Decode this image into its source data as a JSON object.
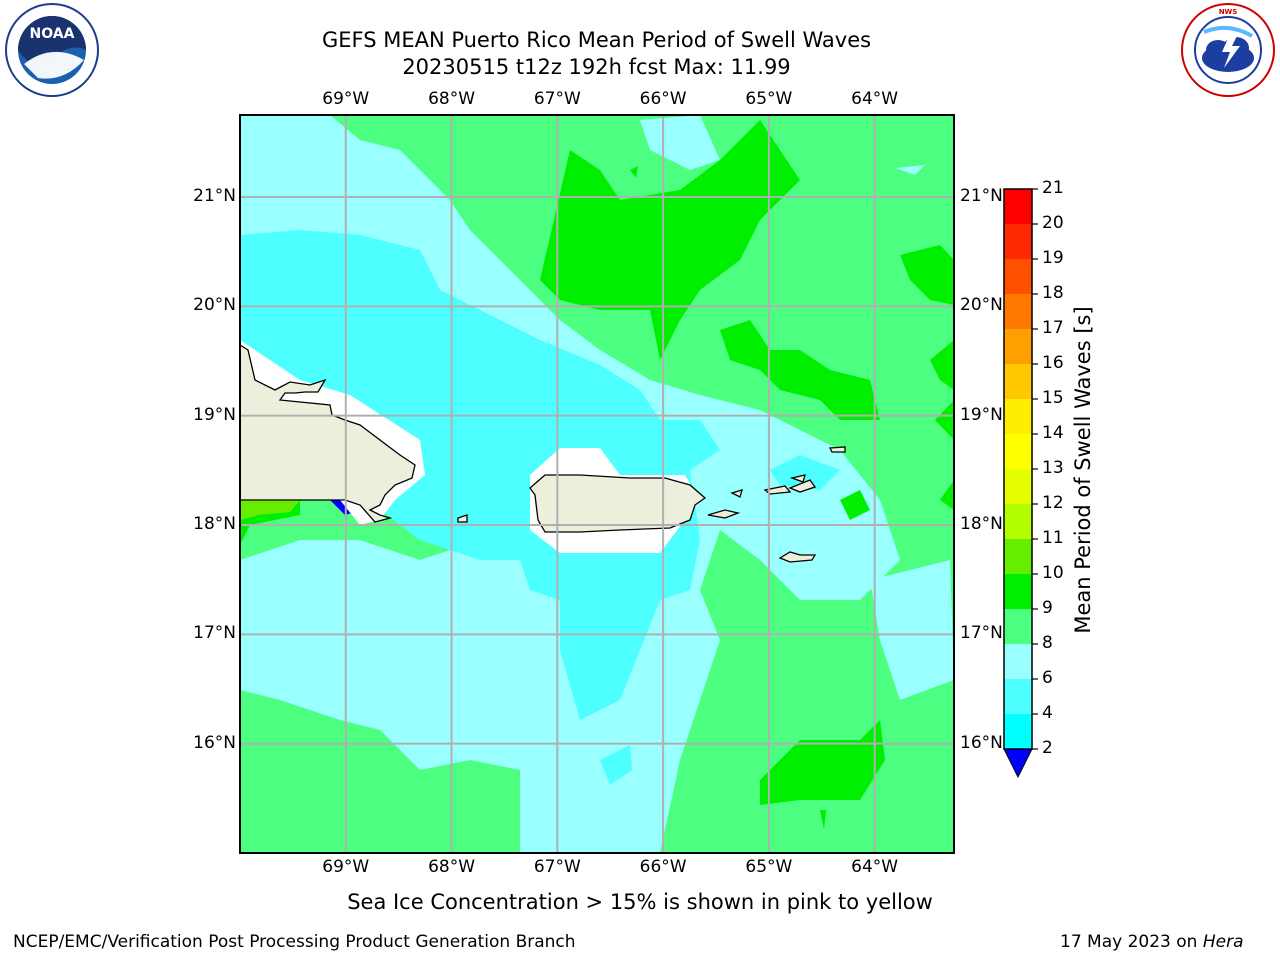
{
  "header": {
    "title_line1": "GEFS MEAN Puerto Rico Mean Period of Swell Waves",
    "title_line2": "20230515 t12z 192h fcst   Max: 11.99"
  },
  "logos": {
    "left": "NOAA",
    "left_ring": "NATIONAL OCEANIC AND ATMOSPHERIC ADMINISTRATION · U.S. DEPARTMENT OF COMMERCE",
    "right_ring": "NATIONAL WEATHER SERVICE"
  },
  "map": {
    "lon_ticks": [
      "69°W",
      "68°W",
      "67°W",
      "66°W",
      "65°W",
      "64°W"
    ],
    "lat_ticks": [
      "21°N",
      "20°N",
      "19°N",
      "18°N",
      "17°N",
      "16°N"
    ],
    "lon_range": [
      -70.0,
      -63.25
    ],
    "lat_range": [
      15.0,
      21.75
    ],
    "grid": true,
    "colors": {
      "ocean_9_10": "#4dff80",
      "ocean_8_9": "#99ffff",
      "ocean_6_8": "#4dffff",
      "ocean_10_11": "#00ee00",
      "land": "#eeeedd"
    }
  },
  "colorbar": {
    "title": "Mean Period of Swell Waves [s]",
    "labels": [
      "21",
      "20",
      "19",
      "18",
      "17",
      "16",
      "15",
      "14",
      "13",
      "12",
      "11",
      "10",
      "9",
      "8",
      "6",
      "4",
      "2"
    ],
    "colors": [
      "#ff0000",
      "#ff2800",
      "#ff5000",
      "#ff7800",
      "#ffa000",
      "#ffc800",
      "#ffee00",
      "#ffff00",
      "#e6ff00",
      "#b3ff00",
      "#66ee00",
      "#00ee00",
      "#4dff80",
      "#99ffff",
      "#4dffff",
      "#00ffff",
      "#0080ff",
      "#0000ff"
    ]
  },
  "footer": {
    "note": "Sea Ice Concentration > 15% is shown in pink to yellow",
    "left": "NCEP/EMC/Verification Post Processing Product Generation Branch",
    "right_prefix": "17 May 2023 on ",
    "right_host": "Hera"
  }
}
